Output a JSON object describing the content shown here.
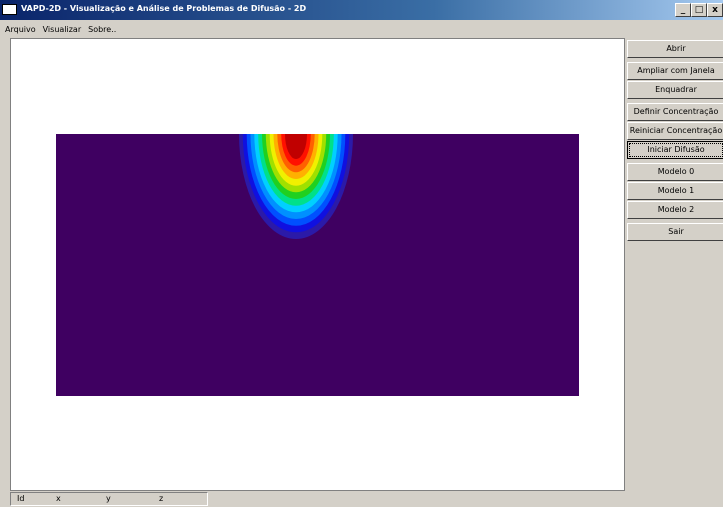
{
  "window": {
    "title": "VAPD-2D - Visualização e Análise de Problemas de Difusão - 2D",
    "minimize": "_",
    "maximize": "□",
    "close": "x"
  },
  "menu": [
    "Arquivo",
    "Visualizar",
    "Sobre.."
  ],
  "buttons": [
    "Abrir",
    "Ampliar com Janela",
    "Enquadrar",
    "Definir Concentração",
    "Reiniciar Concentração",
    "Iniciar Difusão",
    "Modelo 0",
    "Modelo 1",
    "Modelo 2",
    "Sair"
  ],
  "focused_button": "Iniciar Difusão",
  "status": {
    "id": "Id",
    "x": "x",
    "y": "y",
    "z": "z"
  },
  "plot": {
    "background": "#3f0061",
    "colormap": [
      "#3f0061",
      "#2b1aa8",
      "#1010e0",
      "#0050ff",
      "#0090ff",
      "#00d0ff",
      "#00e08a",
      "#20d020",
      "#a0e000",
      "#f0f000",
      "#ffb000",
      "#ff6000",
      "#ff1000",
      "#c00000"
    ]
  }
}
